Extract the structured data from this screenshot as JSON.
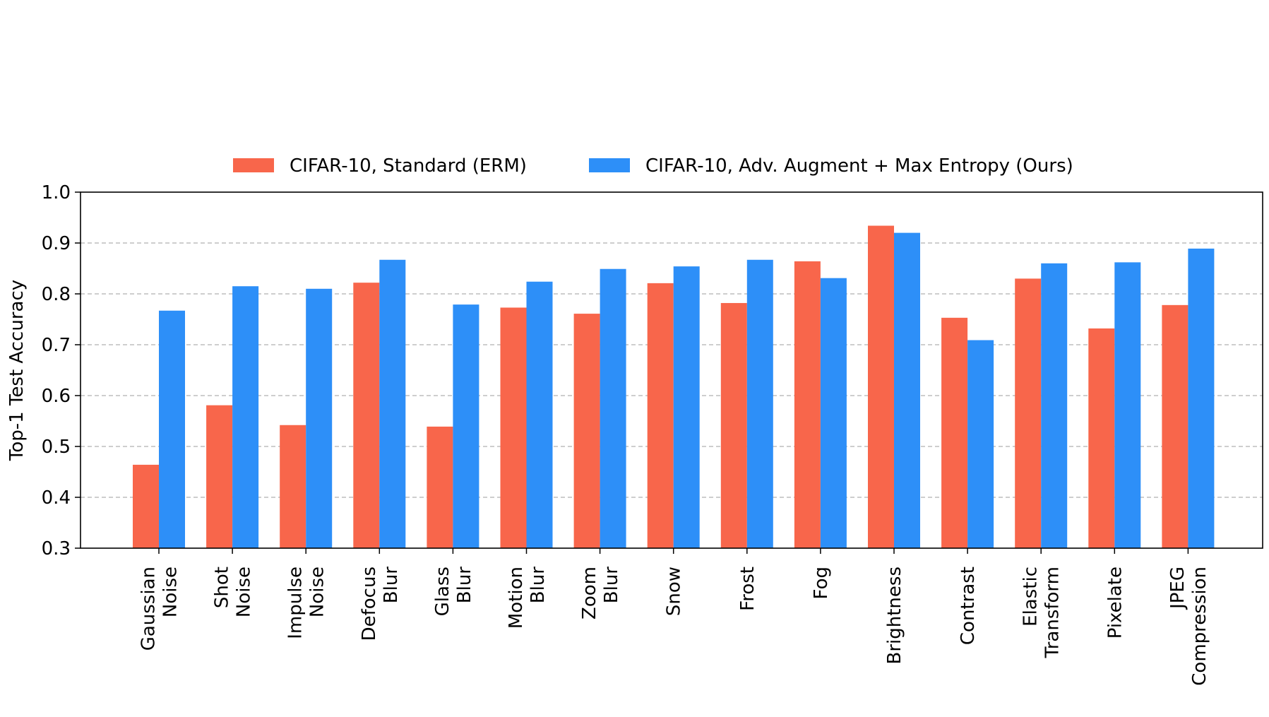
{
  "chart_data": {
    "type": "bar",
    "categories": [
      [
        "Gaussian",
        "Noise"
      ],
      [
        "Shot",
        "Noise"
      ],
      [
        "Impulse",
        "Noise"
      ],
      [
        "Defocus",
        "Blur"
      ],
      [
        "Glass",
        "Blur"
      ],
      [
        "Motion",
        "Blur"
      ],
      [
        "Zoom",
        "Blur"
      ],
      [
        "Snow"
      ],
      [
        "Frost"
      ],
      [
        "Fog"
      ],
      [
        "Brightness"
      ],
      [
        "Contrast"
      ],
      [
        "Elastic",
        "Transform"
      ],
      [
        "Pixelate"
      ],
      [
        "JPEG",
        "Compression"
      ]
    ],
    "series": [
      {
        "name": "CIFAR-10, Standard (ERM)",
        "color": "#F8664B",
        "values": [
          0.464,
          0.581,
          0.542,
          0.822,
          0.539,
          0.773,
          0.761,
          0.821,
          0.782,
          0.864,
          0.934,
          0.753,
          0.83,
          0.732,
          0.778
        ]
      },
      {
        "name": "CIFAR-10, Adv. Augment + Max Entropy (Ours)",
        "color": "#2D8FF8",
        "values": [
          0.767,
          0.815,
          0.81,
          0.867,
          0.779,
          0.824,
          0.849,
          0.854,
          0.867,
          0.831,
          0.92,
          0.709,
          0.86,
          0.862,
          0.889
        ]
      }
    ],
    "ylabel": "Top-1 Test Accuracy",
    "ylim": [
      0.3,
      1.0
    ],
    "yticks": [
      "0.3",
      "0.4",
      "0.5",
      "0.6",
      "0.7",
      "0.8",
      "0.9",
      "1.0"
    ],
    "grid": "horizontal dashed",
    "legend": "top-center"
  }
}
